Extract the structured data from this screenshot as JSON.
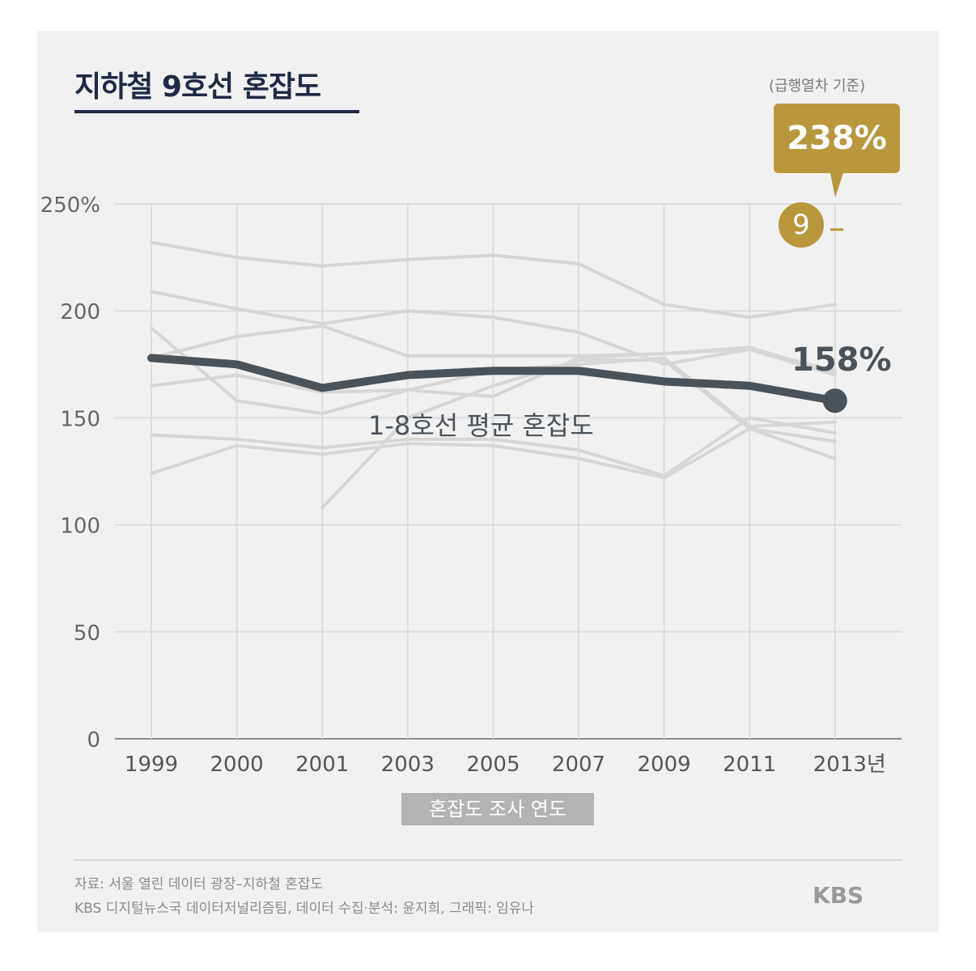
{
  "title": "지하철 9호선 혼잡도",
  "note": "(급행열차 기준)",
  "callout": {
    "value": "238%",
    "line_label": "9"
  },
  "chart_data": {
    "type": "line",
    "title": "지하철 9호선 혼잡도",
    "xlabel": "혼잡도 조사 연도",
    "ylabel": "",
    "x": [
      "1999",
      "2000",
      "2001",
      "2003",
      "2005",
      "2007",
      "2009",
      "2011",
      "2013"
    ],
    "x_tick_labels": [
      "1999",
      "2000",
      "2001",
      "2003",
      "2005",
      "2007",
      "2009",
      "2011",
      "2013년"
    ],
    "y_tick_labels": [
      "0",
      "50",
      "100",
      "150",
      "200",
      "250%"
    ],
    "ylim": [
      0,
      250
    ],
    "grid": true,
    "series": [
      {
        "name": "1-8호선 평균 혼잡도",
        "values": [
          178,
          175,
          164,
          170,
          172,
          172,
          167,
          165,
          158
        ],
        "color": "#4a525a",
        "end_label": "158%"
      },
      {
        "values": [
          232,
          225,
          221,
          224,
          226,
          222,
          203,
          197,
          203
        ],
        "color": "#d6d6d6"
      },
      {
        "values": [
          209,
          201,
          194,
          200,
          197,
          190,
          175,
          182,
          170
        ],
        "color": "#d6d6d6"
      },
      {
        "values": [
          192,
          158,
          152,
          163,
          160,
          178,
          180,
          183,
          171
        ],
        "color": "#d6d6d6"
      },
      {
        "values": [
          178,
          188,
          193,
          179,
          179,
          179,
          180,
          182,
          172
        ],
        "color": "#d6d6d6"
      },
      {
        "values": [
          165,
          170,
          162,
          163,
          172,
          175,
          178,
          146,
          148
        ],
        "color": "#d6d6d6"
      },
      {
        "values": [
          142,
          140,
          136,
          140,
          140,
          135,
          123,
          150,
          143
        ],
        "color": "#d6d6d6"
      },
      {
        "values": [
          124,
          137,
          133,
          138,
          137,
          131,
          122,
          145,
          131
        ],
        "color": "#d6d6d6"
      },
      {
        "values": [
          null,
          null,
          108,
          150,
          165,
          177,
          177,
          145,
          139
        ],
        "color": "#d6d6d6"
      }
    ],
    "highlight": {
      "name": "9",
      "year": "2013",
      "value": 238,
      "color": "#b8973d"
    }
  },
  "source": {
    "line1": "자료: 서울 열린 데이터 광장–지하철 혼잡도",
    "line2": "KBS 디지털뉴스국 데이터저널리즘팀, 데이터 수집·분석: 윤지희, 그래픽: 임유나"
  },
  "logo": "KBS"
}
